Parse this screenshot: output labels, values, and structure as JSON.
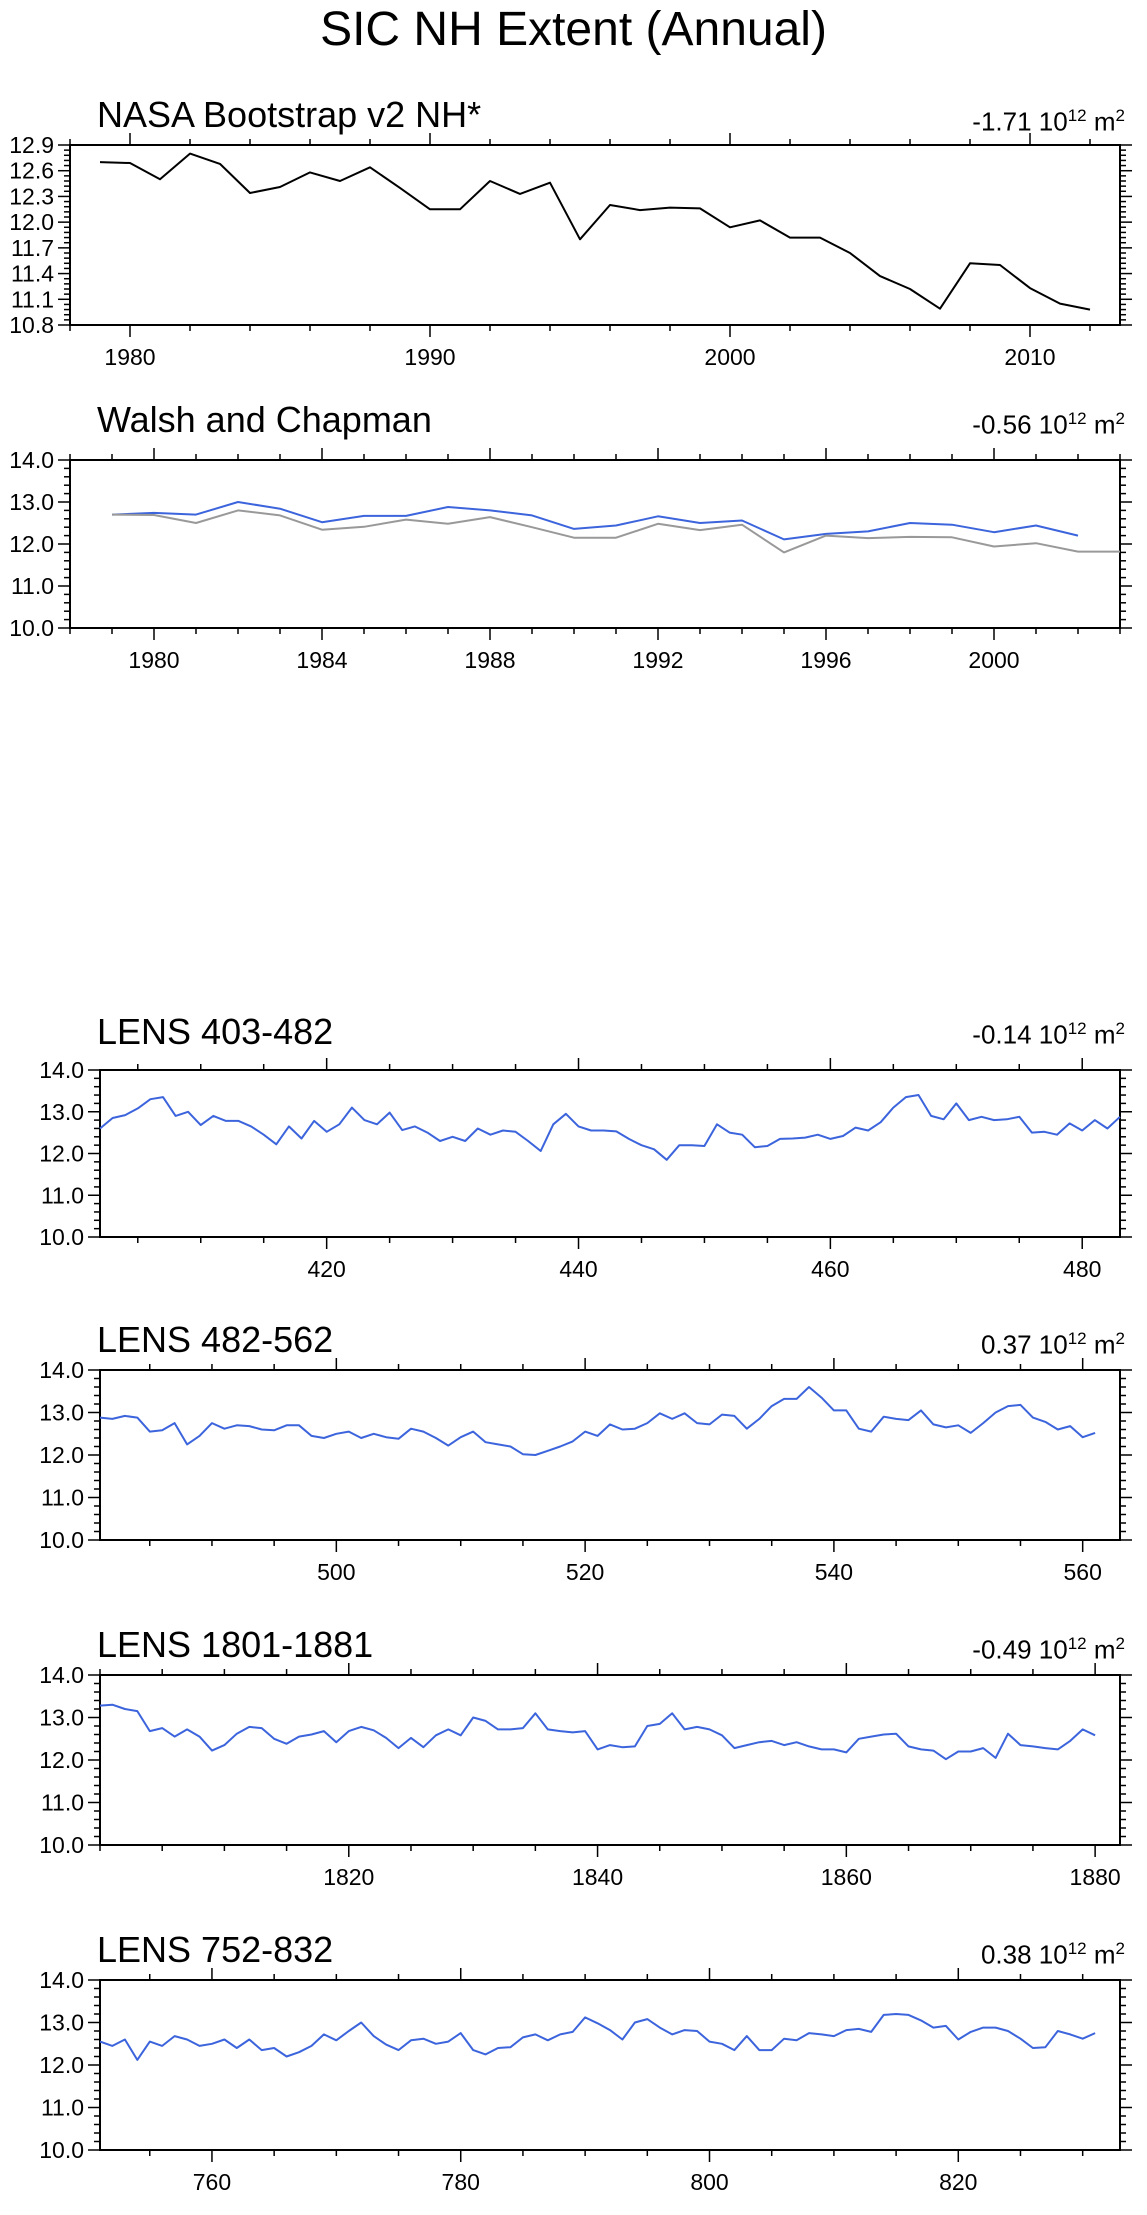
{
  "title": "SIC NH Extent (Annual)",
  "colors": {
    "obs": "#000000",
    "model": "#3c64dc",
    "aux": "#999999"
  },
  "chart_data": [
    {
      "type": "line",
      "title": "NASA Bootstrap v2 NH*",
      "trend": {
        "value": "-1.71",
        "unit": "m",
        "unit_exp": "2",
        "base": "10",
        "base_exp": "12"
      },
      "xlim": [
        1978,
        2013
      ],
      "ylim": [
        10.8,
        12.9
      ],
      "xticks": [
        1980,
        1990,
        2000,
        2010
      ],
      "yticks": [
        10.8,
        11.1,
        11.4,
        11.7,
        12.0,
        12.3,
        12.6,
        12.9
      ],
      "ytick_labels": [
        "10.8",
        "11.1",
        "11.4",
        "11.7",
        "12.0",
        "12.3",
        "12.6",
        "12.9"
      ],
      "x": [
        1979,
        1980,
        1981,
        1982,
        1983,
        1984,
        1985,
        1986,
        1987,
        1988,
        1989,
        1990,
        1991,
        1992,
        1993,
        1994,
        1995,
        1996,
        1997,
        1998,
        1999,
        2000,
        2001,
        2002,
        2003,
        2004,
        2005,
        2006,
        2007,
        2008,
        2009,
        2010,
        2011,
        2012
      ],
      "series": [
        {
          "color": "#000000",
          "values": [
            12.7,
            12.69,
            12.5,
            12.8,
            12.68,
            12.34,
            12.41,
            12.58,
            12.48,
            12.64,
            12.4,
            12.15,
            12.15,
            12.48,
            12.33,
            12.46,
            11.8,
            12.2,
            12.14,
            12.17,
            12.16,
            11.94,
            12.02,
            11.82,
            11.82,
            11.64,
            11.37,
            11.22,
            10.99,
            11.52,
            11.5,
            11.23,
            11.05,
            10.98
          ]
        }
      ]
    },
    {
      "type": "line",
      "title": "Walsh and Chapman",
      "trend": {
        "value": "-0.56",
        "unit": "m",
        "unit_exp": "2",
        "base": "10",
        "base_exp": "12"
      },
      "xlim": [
        1978,
        2003
      ],
      "ylim": [
        10.0,
        14.0
      ],
      "xticks": [
        1980,
        1984,
        1988,
        1992,
        1996,
        2000
      ],
      "yticks": [
        10,
        11,
        12,
        13,
        14
      ],
      "ytick_labels": [
        "10.0",
        "11.0",
        "12.0",
        "13.0",
        "14.0"
      ],
      "x": [
        1979,
        1980,
        1981,
        1982,
        1983,
        1984,
        1985,
        1986,
        1987,
        1988,
        1989,
        1990,
        1991,
        1992,
        1993,
        1994,
        1995,
        1996,
        1997,
        1998,
        1999,
        2000,
        2001,
        2002,
        2003
      ],
      "series": [
        {
          "color": "#3c64dc",
          "values": [
            12.7,
            12.74,
            12.7,
            13.0,
            12.84,
            12.52,
            12.67,
            12.67,
            12.88,
            12.8,
            12.68,
            12.36,
            12.44,
            12.66,
            12.5,
            12.56,
            12.11,
            12.24,
            12.3,
            12.5,
            12.46,
            12.28,
            12.44,
            12.2,
            null
          ]
        },
        {
          "color": "#999999",
          "values": [
            12.7,
            12.69,
            12.5,
            12.8,
            12.68,
            12.34,
            12.41,
            12.58,
            12.48,
            12.64,
            12.4,
            12.15,
            12.15,
            12.48,
            12.33,
            12.46,
            11.8,
            12.2,
            12.14,
            12.17,
            12.16,
            11.94,
            12.02,
            11.82,
            11.82
          ]
        }
      ]
    },
    {
      "type": "line",
      "title": "LENS 403-482",
      "trend": {
        "value": "-0.14",
        "unit": "m",
        "unit_exp": "2",
        "base": "10",
        "base_exp": "12"
      },
      "xlim": [
        402,
        483
      ],
      "ylim": [
        10.0,
        14.0
      ],
      "xticks": [
        420,
        440,
        460,
        480
      ],
      "yticks": [
        10,
        11,
        12,
        13,
        14
      ],
      "ytick_labels": [
        "10.0",
        "11.0",
        "12.0",
        "13.0",
        "14.0"
      ],
      "x_start": 402,
      "series": [
        {
          "color": "#3c64dc",
          "values": [
            12.6,
            12.85,
            12.92,
            13.08,
            13.3,
            13.35,
            12.9,
            13.0,
            12.68,
            12.9,
            12.78,
            12.78,
            12.65,
            12.45,
            12.22,
            12.65,
            12.36,
            12.78,
            12.52,
            12.7,
            13.1,
            12.8,
            12.7,
            12.98,
            12.56,
            12.65,
            12.5,
            12.3,
            12.4,
            12.3,
            12.6,
            12.45,
            12.55,
            12.52,
            12.3,
            12.06,
            12.7,
            12.95,
            12.65,
            12.55,
            12.55,
            12.53,
            12.35,
            12.2,
            12.1,
            11.85,
            12.2,
            12.2,
            12.18,
            12.7,
            12.5,
            12.45,
            12.15,
            12.18,
            12.35,
            12.36,
            12.38,
            12.45,
            12.35,
            12.42,
            12.62,
            12.55,
            12.75,
            13.1,
            13.35,
            13.4,
            12.9,
            12.82,
            13.2,
            12.8,
            12.88,
            12.8,
            12.82,
            12.88,
            12.5,
            12.52,
            12.45,
            12.72,
            12.55,
            12.8,
            12.6,
            12.88
          ]
        }
      ]
    },
    {
      "type": "line",
      "title": "LENS 482-562",
      "trend": {
        "value": "0.37",
        "unit": "m",
        "unit_exp": "2",
        "base": "10",
        "base_exp": "12"
      },
      "xlim": [
        481,
        563
      ],
      "ylim": [
        10.0,
        14.0
      ],
      "xticks": [
        500,
        520,
        540,
        560
      ],
      "yticks": [
        10,
        11,
        12,
        13,
        14
      ],
      "ytick_labels": [
        "10.0",
        "11.0",
        "12.0",
        "13.0",
        "14.0"
      ],
      "x_start": 481,
      "series": [
        {
          "color": "#3c64dc",
          "values": [
            12.88,
            12.85,
            12.92,
            12.88,
            12.55,
            12.58,
            12.75,
            12.25,
            12.45,
            12.75,
            12.62,
            12.7,
            12.68,
            12.6,
            12.58,
            12.7,
            12.7,
            12.45,
            12.4,
            12.5,
            12.55,
            12.4,
            12.5,
            12.42,
            12.38,
            12.62,
            12.55,
            12.4,
            12.22,
            12.42,
            12.55,
            12.3,
            12.25,
            12.2,
            12.02,
            12.0,
            12.1,
            12.2,
            12.32,
            12.55,
            12.45,
            12.72,
            12.6,
            12.62,
            12.75,
            12.98,
            12.85,
            12.98,
            12.75,
            12.72,
            12.95,
            12.92,
            12.62,
            12.85,
            13.15,
            13.32,
            13.32,
            13.6,
            13.35,
            13.05,
            13.05,
            12.62,
            12.55,
            12.9,
            12.85,
            12.82,
            13.05,
            12.72,
            12.65,
            12.7,
            12.52,
            12.75,
            13.0,
            13.15,
            13.18,
            12.88,
            12.78,
            12.6,
            12.68,
            12.42,
            12.52
          ]
        }
      ]
    },
    {
      "type": "line",
      "title": "LENS 1801-1881",
      "trend": {
        "value": "-0.49",
        "unit": "m",
        "unit_exp": "2",
        "base": "10",
        "base_exp": "12"
      },
      "xlim": [
        1800,
        1882
      ],
      "ylim": [
        10.0,
        14.0
      ],
      "xticks": [
        1820,
        1840,
        1860,
        1880
      ],
      "yticks": [
        10,
        11,
        12,
        13,
        14
      ],
      "ytick_labels": [
        "10.0",
        "11.0",
        "12.0",
        "13.0",
        "14.0"
      ],
      "x_start": 1800,
      "series": [
        {
          "color": "#3c64dc",
          "values": [
            13.28,
            13.3,
            13.2,
            13.15,
            12.68,
            12.75,
            12.55,
            12.72,
            12.55,
            12.22,
            12.35,
            12.62,
            12.78,
            12.75,
            12.5,
            12.38,
            12.55,
            12.6,
            12.68,
            12.42,
            12.68,
            12.78,
            12.7,
            12.52,
            12.28,
            12.52,
            12.3,
            12.58,
            12.72,
            12.58,
            13.0,
            12.92,
            12.72,
            12.72,
            12.75,
            13.1,
            12.72,
            12.68,
            12.65,
            12.68,
            12.25,
            12.35,
            12.3,
            12.32,
            12.8,
            12.85,
            13.1,
            12.72,
            12.78,
            12.72,
            12.58,
            12.28,
            12.35,
            12.42,
            12.45,
            12.35,
            12.42,
            12.32,
            12.25,
            12.25,
            12.18,
            12.5,
            12.55,
            12.6,
            12.62,
            12.32,
            12.25,
            12.22,
            12.02,
            12.2,
            12.2,
            12.28,
            12.05,
            12.62,
            12.35,
            12.32,
            12.28,
            12.25,
            12.45,
            12.72,
            12.58
          ]
        }
      ]
    },
    {
      "type": "line",
      "title": "LENS 752-832",
      "trend": {
        "value": "0.38",
        "unit": "m",
        "unit_exp": "2",
        "base": "10",
        "base_exp": "12"
      },
      "xlim": [
        751,
        833
      ],
      "ylim": [
        10.0,
        14.0
      ],
      "xticks": [
        760,
        780,
        800,
        820
      ],
      "yticks": [
        10,
        11,
        12,
        13,
        14
      ],
      "ytick_labels": [
        "10.0",
        "11.0",
        "12.0",
        "13.0",
        "14.0"
      ],
      "x_start": 751,
      "series": [
        {
          "color": "#3c64dc",
          "values": [
            12.55,
            12.45,
            12.6,
            12.12,
            12.55,
            12.45,
            12.68,
            12.6,
            12.45,
            12.5,
            12.6,
            12.4,
            12.6,
            12.35,
            12.4,
            12.2,
            12.3,
            12.45,
            12.72,
            12.58,
            12.8,
            13.0,
            12.68,
            12.48,
            12.35,
            12.58,
            12.62,
            12.5,
            12.55,
            12.75,
            12.35,
            12.25,
            12.4,
            12.42,
            12.65,
            12.72,
            12.58,
            12.72,
            12.78,
            13.12,
            12.98,
            12.82,
            12.6,
            13.0,
            13.08,
            12.88,
            12.72,
            12.82,
            12.8,
            12.55,
            12.5,
            12.35,
            12.68,
            12.35,
            12.35,
            12.62,
            12.58,
            12.75,
            12.72,
            12.68,
            12.82,
            12.85,
            12.78,
            13.18,
            13.2,
            13.18,
            13.05,
            12.88,
            12.92,
            12.6,
            12.78,
            12.88,
            12.88,
            12.8,
            12.62,
            12.4,
            12.42,
            12.8,
            12.72,
            12.62,
            12.75
          ]
        }
      ]
    }
  ]
}
